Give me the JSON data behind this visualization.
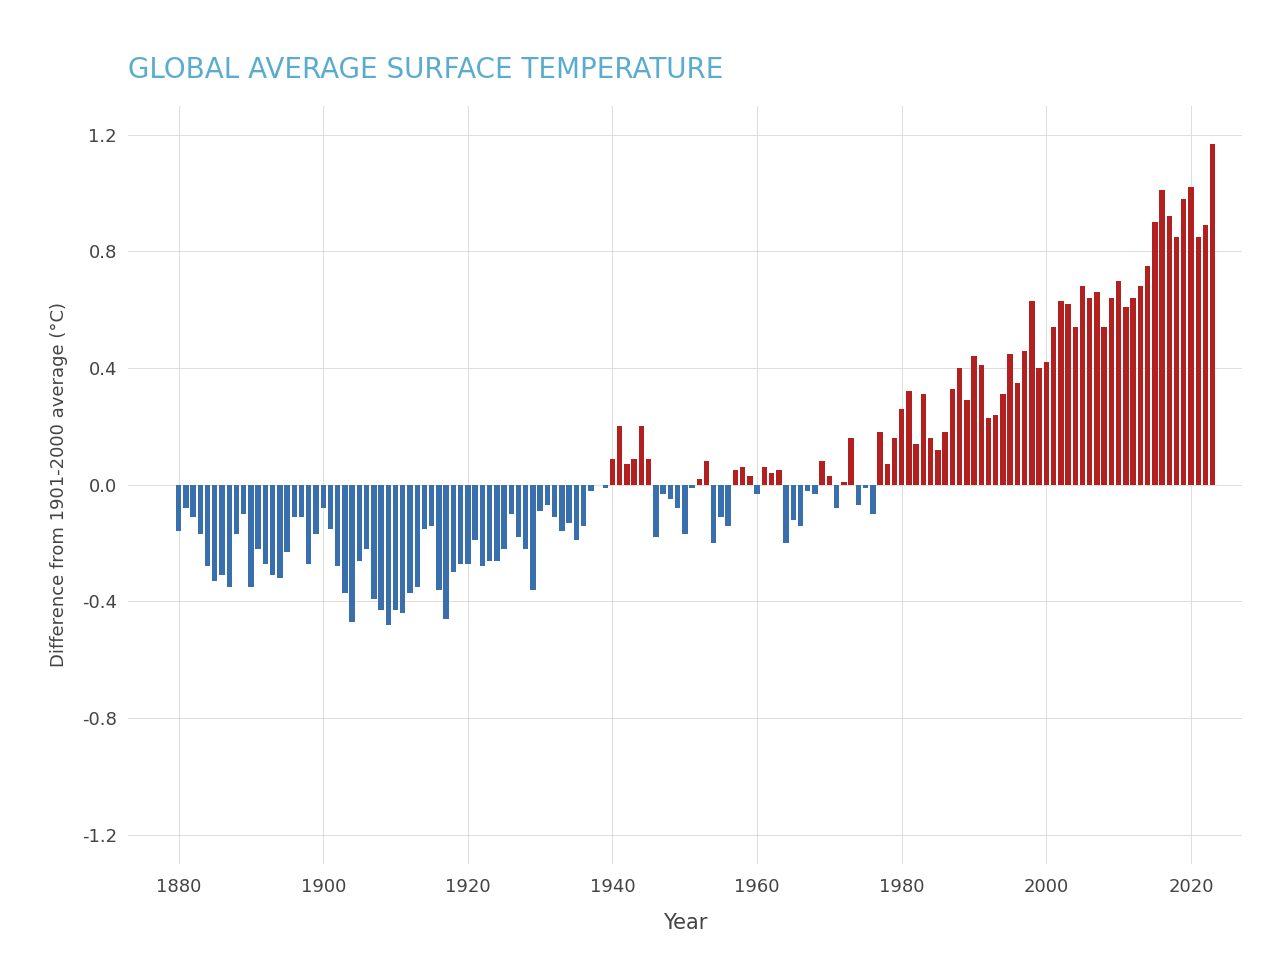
{
  "title": "GLOBAL AVERAGE SURFACE TEMPERATURE",
  "title_color": "#5aacce",
  "xlabel": "Year",
  "ylabel": "Difference from 1901-2000 average (°C)",
  "ylim": [
    -1.3,
    1.3
  ],
  "yticks": [
    -1.2,
    -0.8,
    -0.4,
    0.0,
    0.4,
    0.8,
    1.2
  ],
  "background_color": "#ffffff",
  "bar_positive_color": "#b22020",
  "bar_negative_color": "#3a6fad",
  "years": [
    1880,
    1881,
    1882,
    1883,
    1884,
    1885,
    1886,
    1887,
    1888,
    1889,
    1890,
    1891,
    1892,
    1893,
    1894,
    1895,
    1896,
    1897,
    1898,
    1899,
    1900,
    1901,
    1902,
    1903,
    1904,
    1905,
    1906,
    1907,
    1908,
    1909,
    1910,
    1911,
    1912,
    1913,
    1914,
    1915,
    1916,
    1917,
    1918,
    1919,
    1920,
    1921,
    1922,
    1923,
    1924,
    1925,
    1926,
    1927,
    1928,
    1929,
    1930,
    1931,
    1932,
    1933,
    1934,
    1935,
    1936,
    1937,
    1938,
    1939,
    1940,
    1941,
    1942,
    1943,
    1944,
    1945,
    1946,
    1947,
    1948,
    1949,
    1950,
    1951,
    1952,
    1953,
    1954,
    1955,
    1956,
    1957,
    1958,
    1959,
    1960,
    1961,
    1962,
    1963,
    1964,
    1965,
    1966,
    1967,
    1968,
    1969,
    1970,
    1971,
    1972,
    1973,
    1974,
    1975,
    1976,
    1977,
    1978,
    1979,
    1980,
    1981,
    1982,
    1983,
    1984,
    1985,
    1986,
    1987,
    1988,
    1989,
    1990,
    1991,
    1992,
    1993,
    1994,
    1995,
    1996,
    1997,
    1998,
    1999,
    2000,
    2001,
    2002,
    2003,
    2004,
    2005,
    2006,
    2007,
    2008,
    2009,
    2010,
    2011,
    2012,
    2013,
    2014,
    2015,
    2016,
    2017,
    2018,
    2019,
    2020,
    2021,
    2022,
    2023
  ],
  "values": [
    -0.16,
    -0.08,
    -0.11,
    -0.17,
    -0.28,
    -0.33,
    -0.31,
    -0.35,
    -0.17,
    -0.1,
    -0.35,
    -0.22,
    -0.27,
    -0.31,
    -0.32,
    -0.23,
    -0.11,
    -0.11,
    -0.27,
    -0.17,
    -0.08,
    -0.15,
    -0.28,
    -0.37,
    -0.47,
    -0.26,
    -0.22,
    -0.39,
    -0.43,
    -0.48,
    -0.43,
    -0.44,
    -0.37,
    -0.35,
    -0.15,
    -0.14,
    -0.36,
    -0.46,
    -0.3,
    -0.27,
    -0.27,
    -0.19,
    -0.28,
    -0.26,
    -0.26,
    -0.22,
    -0.1,
    -0.18,
    -0.22,
    -0.36,
    -0.09,
    -0.07,
    -0.11,
    -0.16,
    -0.13,
    -0.19,
    -0.14,
    -0.02,
    0.0,
    -0.01,
    0.09,
    0.2,
    0.07,
    0.09,
    0.2,
    0.09,
    -0.18,
    -0.03,
    -0.05,
    -0.08,
    -0.17,
    -0.01,
    0.02,
    0.08,
    -0.2,
    -0.11,
    -0.14,
    0.05,
    0.06,
    0.03,
    -0.03,
    0.06,
    0.04,
    0.05,
    -0.2,
    -0.12,
    -0.14,
    -0.02,
    -0.03,
    0.08,
    0.03,
    -0.08,
    0.01,
    0.16,
    -0.07,
    -0.01,
    -0.1,
    0.18,
    0.07,
    0.16,
    0.26,
    0.32,
    0.14,
    0.31,
    0.16,
    0.12,
    0.18,
    0.33,
    0.4,
    0.29,
    0.44,
    0.41,
    0.23,
    0.24,
    0.31,
    0.45,
    0.35,
    0.46,
    0.63,
    0.4,
    0.42,
    0.54,
    0.63,
    0.62,
    0.54,
    0.68,
    0.64,
    0.66,
    0.54,
    0.64,
    0.7,
    0.61,
    0.64,
    0.68,
    0.75,
    0.9,
    1.01,
    0.92,
    0.85,
    0.98,
    1.02,
    0.85,
    0.89,
    1.17
  ]
}
